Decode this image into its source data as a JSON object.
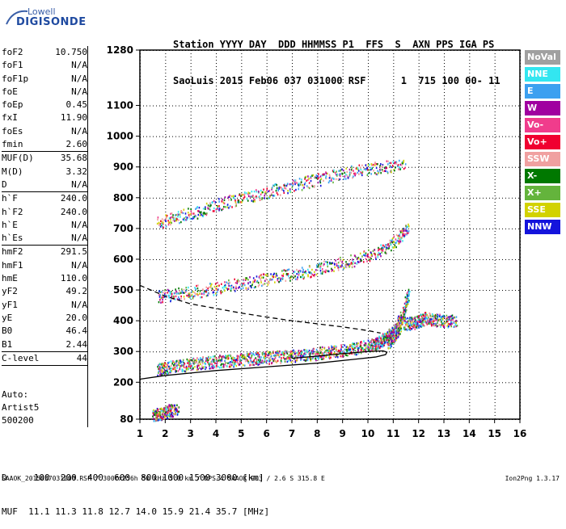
{
  "logo": {
    "line1": "Lowell",
    "line2": "DIGISONDE"
  },
  "header": {
    "line1": "Station YYYY DAY  DDD HHMMSS P1  FFS  S  AXN PPS IGA PS",
    "line2": "SaoLuis 2015 Feb06 037 031000 RSF      1  715 100 00- 11"
  },
  "params_group1": [
    {
      "label": "foF2",
      "value": "10.750"
    },
    {
      "label": "foF1",
      "value": "N/A"
    },
    {
      "label": "foF1p",
      "value": "N/A"
    },
    {
      "label": "foE",
      "value": "N/A"
    },
    {
      "label": "foEp",
      "value": "0.45"
    },
    {
      "label": "fxI",
      "value": "11.90"
    },
    {
      "label": "foEs",
      "value": "N/A"
    },
    {
      "label": "fmin",
      "value": "2.60"
    }
  ],
  "params_group2": [
    {
      "label": "MUF(D)",
      "value": "35.68"
    },
    {
      "label": "M(D)",
      "value": "3.32"
    },
    {
      "label": "D",
      "value": "N/A"
    }
  ],
  "params_group3": [
    {
      "label": "h`F",
      "value": "240.0"
    },
    {
      "label": "h`F2",
      "value": "240.0"
    },
    {
      "label": "h`E",
      "value": "N/A"
    },
    {
      "label": "h`Es",
      "value": "N/A"
    }
  ],
  "params_group4": [
    {
      "label": "hmF2",
      "value": "291.5"
    },
    {
      "label": "hmF1",
      "value": "N/A"
    },
    {
      "label": "hmE",
      "value": "110.0"
    },
    {
      "label": "yF2",
      "value": "49.2"
    },
    {
      "label": "yF1",
      "value": "N/A"
    },
    {
      "label": "yE",
      "value": "20.0"
    },
    {
      "label": "B0",
      "value": "46.4"
    },
    {
      "label": "B1",
      "value": "2.44"
    }
  ],
  "params_group5": [
    {
      "label": "C-level",
      "value": "44"
    }
  ],
  "auto": {
    "line1": "Auto:",
    "line2": "Artist5",
    "line3": "500200"
  },
  "legend": [
    {
      "label": "NoVal",
      "color": "#a0a0a0"
    },
    {
      "label": "NNE",
      "color": "#33e6f0"
    },
    {
      "label": "E",
      "color": "#3ca0f0"
    },
    {
      "label": "W",
      "color": "#a000a0"
    },
    {
      "label": "Vo-",
      "color": "#f03c8c"
    },
    {
      "label": "Vo+",
      "color": "#f00030"
    },
    {
      "label": "SSW",
      "color": "#f0a0a0"
    },
    {
      "label": "X-",
      "color": "#007800"
    },
    {
      "label": "X+",
      "color": "#64b43c"
    },
    {
      "label": "SSE",
      "color": "#d2d200"
    },
    {
      "label": "NNW",
      "color": "#1414dc"
    }
  ],
  "muf_table": {
    "d_line": "D     100  200  400  600  800 1000 1500 3000 [km]",
    "muf_line": "MUF  11.1 11.3 11.8 12.7 14.0 15.9 21.4 35.7 [MHz]"
  },
  "footer": {
    "text": "SAAOK_2015037031000.RSF / 300fx256h 50 kHz 5.0 km / DPS-4 SAAOK 903 / 2.6 S 315.8 E",
    "version": "Ion2Png 1.3.17"
  },
  "chart_data": {
    "type": "scatter",
    "xlim": [
      1,
      16
    ],
    "ylim": [
      80,
      1280
    ],
    "xticks": [
      1,
      2,
      3,
      4,
      5,
      6,
      7,
      8,
      9,
      10,
      11,
      12,
      13,
      14,
      15,
      16
    ],
    "yticks": [
      80,
      200,
      300,
      400,
      500,
      600,
      700,
      800,
      900,
      1000,
      1100,
      1280
    ],
    "grid": true,
    "traces": [
      {
        "name": "F2 trace (O)",
        "x": [
          1.7,
          2.0,
          2.5,
          3.0,
          3.5,
          4.0,
          4.5,
          5.0,
          5.5,
          6.0,
          6.5,
          7.0,
          7.5,
          8.0,
          8.5,
          9.0,
          9.5,
          10.0,
          10.3,
          10.5,
          10.7,
          10.9,
          11.1,
          11.3
        ],
        "y": [
          245,
          248,
          255,
          260,
          265,
          270,
          272,
          276,
          279,
          282,
          285,
          287,
          290,
          295,
          300,
          305,
          312,
          320,
          328,
          335,
          345,
          360,
          380,
          420
        ]
      },
      {
        "name": "F2 trace (X)",
        "x": [
          10.8,
          11.0,
          11.2,
          11.4,
          11.6
        ],
        "y": [
          330,
          350,
          375,
          420,
          500
        ]
      },
      {
        "name": "second hop",
        "x": [
          1.7,
          2.5,
          3.5,
          4.5,
          5.5,
          6.5,
          7.5,
          8.5,
          9.5,
          10.5,
          11.2,
          11.6
        ],
        "y": [
          480,
          490,
          500,
          515,
          530,
          545,
          560,
          580,
          600,
          630,
          670,
          710
        ]
      },
      {
        "name": "third hop",
        "x": [
          1.7,
          2.5,
          3.5,
          4.5,
          5.5,
          6.5,
          7.5,
          8.5,
          9.5,
          10.5,
          11.5
        ],
        "y": [
          720,
          740,
          760,
          790,
          810,
          830,
          850,
          870,
          890,
          900,
          910
        ]
      },
      {
        "name": "E-region traces",
        "x": [
          1.5,
          1.8,
          2.0,
          2.2,
          2.5
        ],
        "y": [
          95,
          100,
          105,
          110,
          112
        ]
      },
      {
        "name": "oblique echoes",
        "x": [
          11.4,
          11.8,
          12.0,
          12.3,
          12.6,
          13.0,
          13.5
        ],
        "y": [
          390,
          395,
          400,
          410,
          405,
          402,
          400
        ]
      }
    ],
    "profile_solid": {
      "x": [
        1.0,
        2.0,
        4.0,
        6.0,
        8.0,
        9.5,
        10.3,
        10.7,
        10.75,
        10.6,
        10.0,
        9.0,
        8.0,
        7.0
      ],
      "y": [
        210,
        222,
        238,
        250,
        262,
        275,
        282,
        290,
        298,
        302,
        300,
        293,
        285,
        278
      ]
    },
    "profile_dashed": {
      "x": [
        1.0,
        2.0,
        3.0,
        4.0,
        5.0,
        6.0,
        7.0,
        8.0,
        9.0,
        10.0,
        10.5
      ],
      "y": [
        515,
        480,
        455,
        440,
        425,
        412,
        400,
        390,
        380,
        368,
        360
      ]
    }
  }
}
